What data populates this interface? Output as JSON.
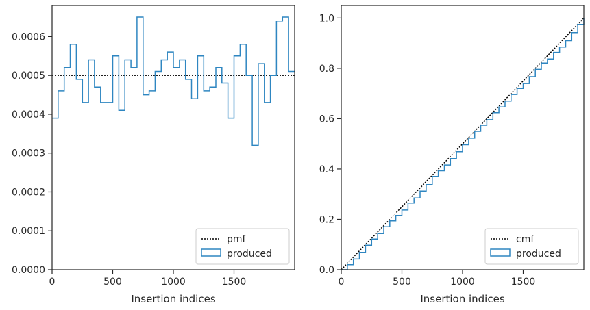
{
  "chart_data": [
    {
      "type": "histogram",
      "xlabel": "Insertion indices",
      "ylabel": "",
      "xlim": [
        0,
        2000
      ],
      "ylim": [
        0,
        0.00068
      ],
      "x_ticks": [
        0,
        500,
        1000,
        1500
      ],
      "x_tick_labels": [
        "0",
        "500",
        "1000",
        "1500"
      ],
      "y_ticks": [
        0,
        0.0001,
        0.0002,
        0.0003,
        0.0004,
        0.0005,
        0.0006
      ],
      "y_tick_labels": [
        "0.0000",
        "0.0001",
        "0.0002",
        "0.0003",
        "0.0004",
        "0.0005",
        "0.0006"
      ],
      "grid": false,
      "legend_position": "lower-right",
      "reference_line": {
        "label": "pmf",
        "style": "dotted",
        "color": "#000000",
        "y": 0.0005
      },
      "series": [
        {
          "name": "produced",
          "style": "step",
          "color": "#2e86c1",
          "bin_edges": [
            0,
            50,
            100,
            150,
            200,
            250,
            300,
            350,
            400,
            450,
            500,
            550,
            600,
            650,
            700,
            750,
            800,
            850,
            900,
            950,
            1000,
            1050,
            1100,
            1150,
            1200,
            1250,
            1300,
            1350,
            1400,
            1450,
            1500,
            1550,
            1600,
            1650,
            1700,
            1750,
            1800,
            1850,
            1900,
            1950,
            2000
          ],
          "values": [
            0.00039,
            0.00046,
            0.00052,
            0.00058,
            0.00049,
            0.00043,
            0.00054,
            0.00047,
            0.00043,
            0.00043,
            0.00055,
            0.00041,
            0.00054,
            0.00052,
            0.00065,
            0.00045,
            0.00046,
            0.00051,
            0.00054,
            0.00056,
            0.00052,
            0.00054,
            0.00049,
            0.00044,
            0.00055,
            0.00046,
            0.00047,
            0.00052,
            0.00048,
            0.00039,
            0.00055,
            0.00058,
            0.0005,
            0.00032,
            0.00053,
            0.00043,
            0.0005,
            0.00064,
            0.00065,
            0.00051
          ]
        }
      ]
    },
    {
      "type": "line",
      "xlabel": "Insertion indices",
      "ylabel": "",
      "xlim": [
        0,
        2000
      ],
      "ylim": [
        0,
        1.05
      ],
      "x_ticks": [
        0,
        500,
        1000,
        1500
      ],
      "x_tick_labels": [
        "0",
        "500",
        "1000",
        "1500"
      ],
      "y_ticks": [
        0,
        0.2,
        0.4,
        0.6,
        0.8,
        1.0
      ],
      "y_tick_labels": [
        "0.0",
        "0.2",
        "0.4",
        "0.6",
        "0.8",
        "1.0"
      ],
      "grid": false,
      "legend_position": "lower-right",
      "reference_line": {
        "label": "cmf",
        "style": "dotted",
        "color": "#000000",
        "x": [
          0,
          2000
        ],
        "y": [
          0,
          1.0
        ]
      },
      "series": [
        {
          "name": "produced",
          "style": "step",
          "color": "#2e86c1",
          "x": [
            0,
            50,
            100,
            150,
            200,
            250,
            300,
            350,
            400,
            450,
            500,
            550,
            600,
            650,
            700,
            750,
            800,
            850,
            900,
            950,
            1000,
            1050,
            1100,
            1150,
            1200,
            1250,
            1300,
            1350,
            1400,
            1450,
            1500,
            1550,
            1600,
            1650,
            1700,
            1750,
            1800,
            1850,
            1900,
            1950,
            2000
          ],
          "y": [
            0,
            0.0195,
            0.0425,
            0.0685,
            0.0975,
            0.122,
            0.1435,
            0.1705,
            0.194,
            0.2155,
            0.237,
            0.2645,
            0.285,
            0.312,
            0.338,
            0.3705,
            0.393,
            0.416,
            0.4415,
            0.4685,
            0.4965,
            0.5225,
            0.5495,
            0.574,
            0.596,
            0.6235,
            0.6465,
            0.67,
            0.696,
            0.72,
            0.7395,
            0.767,
            0.796,
            0.821,
            0.837,
            0.8635,
            0.885,
            0.91,
            0.942,
            0.9745,
            1.0
          ]
        }
      ]
    }
  ]
}
